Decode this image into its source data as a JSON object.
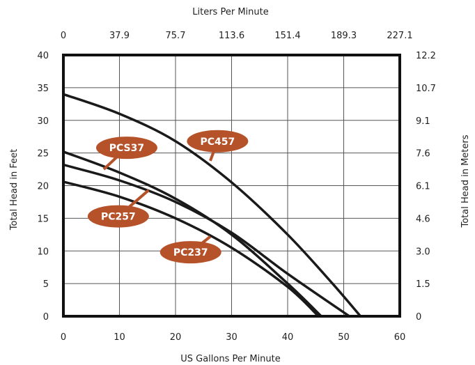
{
  "chart_data": {
    "type": "line",
    "top_xlabel": "Liters Per Minute",
    "xlabel": "US Gallons Per Minute",
    "ylabel": "Total Head in Feet",
    "right_ylabel": "Total Head in Meters",
    "xlim": [
      0,
      60
    ],
    "ylim": [
      0,
      40
    ],
    "grid": true,
    "x_ticks": [
      "0",
      "10",
      "20",
      "30",
      "40",
      "50",
      "60"
    ],
    "top_x_ticks": [
      "0",
      "37.9",
      "75.7",
      "113.6",
      "151.4",
      "189.3",
      "227.1"
    ],
    "y_ticks": [
      "0",
      "5",
      "10",
      "15",
      "20",
      "25",
      "30",
      "35",
      "40"
    ],
    "right_y_ticks": [
      "0",
      "1.5",
      "3.0",
      "4.6",
      "6.1",
      "7.6",
      "9.1",
      "10.7",
      "12.2"
    ],
    "label_color": "#b5522a",
    "line_color": "#1a1a1a",
    "series": [
      {
        "name": "PC457",
        "x": [
          0,
          10,
          20,
          30,
          40,
          48,
          53
        ],
        "y": [
          34,
          31,
          26.8,
          20.5,
          12.5,
          5,
          0
        ]
      },
      {
        "name": "PCS37",
        "x": [
          0,
          10,
          20,
          30,
          40,
          46
        ],
        "y": [
          25.2,
          22,
          18,
          12.5,
          5,
          0
        ]
      },
      {
        "name": "PC257",
        "x": [
          0,
          10,
          20,
          30,
          40,
          51
        ],
        "y": [
          23.2,
          20.8,
          17.5,
          12.8,
          6.5,
          0
        ]
      },
      {
        "name": "PC237",
        "x": [
          0,
          10,
          20,
          30,
          40,
          45.5
        ],
        "y": [
          20.6,
          18.3,
          15,
          10.5,
          4.5,
          0
        ]
      }
    ],
    "annotations": [
      {
        "text": "PC457",
        "series": "PC457",
        "label_at": [
          27.5,
          26.8
        ],
        "line_end": [
          26.2,
          23.8
        ]
      },
      {
        "text": "PCS37",
        "series": "PCS37",
        "label_at": [
          11.3,
          25.8
        ],
        "line_end": [
          7.2,
          22.5
        ]
      },
      {
        "text": "PC257",
        "series": "PC257",
        "label_at": [
          9.8,
          15.3
        ],
        "line_end": [
          15.2,
          19.3
        ]
      },
      {
        "text": "PC237",
        "series": "PC237",
        "label_at": [
          22.7,
          9.8
        ],
        "line_end": [
          26.2,
          12.2
        ]
      }
    ]
  }
}
